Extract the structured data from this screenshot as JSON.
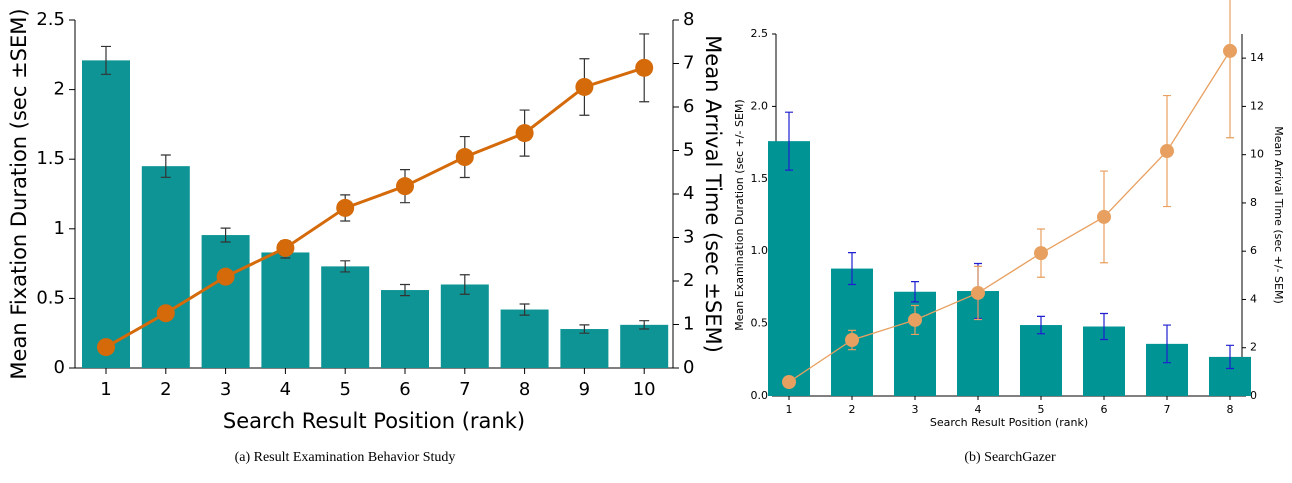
{
  "chart_data": [
    {
      "type": "bar-line",
      "x_label": "Search Result Position (rank)",
      "y_label": "Mean Fixation Duration (sec ±SEM)",
      "y2_label": "Mean Arrival Time (sec ±SEM)",
      "caption": "(a) Result Examination Behavior Study",
      "categories": [
        "1",
        "2",
        "3",
        "4",
        "5",
        "6",
        "7",
        "8",
        "9",
        "10"
      ],
      "ylim": [
        0,
        2.5
      ],
      "yticks": [
        0,
        0.5,
        1,
        1.5,
        2,
        2.5
      ],
      "y2lim": [
        0,
        8
      ],
      "y2ticks": [
        0,
        1,
        2,
        3,
        4,
        5,
        6,
        7,
        8
      ],
      "series": [
        {
          "type": "bar",
          "color": "#0e9494",
          "error_color": "#333333",
          "values": [
            2.21,
            1.45,
            0.955,
            0.83,
            0.73,
            0.56,
            0.6,
            0.42,
            0.28,
            0.31
          ],
          "errors": [
            0.1,
            0.08,
            0.05,
            0.04,
            0.04,
            0.04,
            0.07,
            0.04,
            0.03,
            0.03
          ]
        },
        {
          "type": "line",
          "axis": "y2",
          "color": "#d46a0a",
          "error_color": "#333333",
          "values": [
            0.48,
            1.26,
            2.1,
            2.76,
            3.68,
            4.18,
            4.85,
            5.4,
            6.46,
            6.9
          ],
          "errors": [
            0.1,
            0.1,
            0.1,
            0.17,
            0.3,
            0.38,
            0.47,
            0.53,
            0.65,
            0.78
          ]
        }
      ]
    },
    {
      "type": "bar-line",
      "x_label": "Search Result Position (rank)",
      "y_label": "Mean Examination Duration (sec +/- SEM)",
      "y2_label": "Mean Arrival Time (sec +/- SEM)",
      "caption": "(b) SearchGazer",
      "categories": [
        "1",
        "2",
        "3",
        "4",
        "5",
        "6",
        "7",
        "8"
      ],
      "ylim": [
        0,
        2.5
      ],
      "yticks": [
        {
          "value": 0,
          "label": "0.0"
        },
        0.5,
        {
          "value": 1,
          "label": "1.0"
        },
        1.5,
        {
          "value": 2,
          "label": "2.0"
        },
        2.5
      ],
      "y2lim": [
        0,
        15
      ],
      "y2ticks": [
        0,
        2,
        4,
        6,
        8,
        10,
        12,
        14
      ],
      "series": [
        {
          "type": "bar",
          "color": "#009494",
          "error_color": "#1f1fd0",
          "values": [
            1.76,
            0.88,
            0.72,
            0.725,
            0.49,
            0.48,
            0.36,
            0.27
          ],
          "errors": [
            0.2,
            0.11,
            0.07,
            0.19,
            0.06,
            0.09,
            0.13,
            0.08
          ]
        },
        {
          "type": "line",
          "axis": "y2",
          "color": "#e8a060",
          "error_color": "#e8a060",
          "values": [
            0.58,
            2.32,
            3.15,
            4.27,
            5.92,
            7.42,
            10.15,
            14.3
          ],
          "errors": [
            0.1,
            0.4,
            0.6,
            1.1,
            1.0,
            1.9,
            2.3,
            3.6
          ]
        }
      ]
    }
  ]
}
